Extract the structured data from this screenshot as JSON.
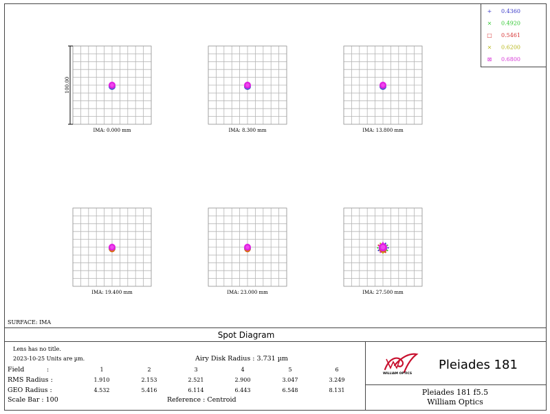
{
  "title": "Spot Diagram",
  "surface": "SURFACE: IMA",
  "legend": [
    {
      "label": "0.4360",
      "color": "#3a3ac8",
      "marker": "+"
    },
    {
      "label": "0.4920",
      "color": "#33c933",
      "marker": "×"
    },
    {
      "label": "0.5461",
      "color": "#d63232",
      "marker": "□"
    },
    {
      "label": "0.6200",
      "color": "#b8b81c",
      "marker": "×"
    },
    {
      "label": "0.6800",
      "color": "#d638d6",
      "marker": "⊠"
    }
  ],
  "scale_label": "100.00",
  "fields": [
    {
      "label": "IMA:  0.000 mm"
    },
    {
      "label": "IMA:  8.300 mm"
    },
    {
      "label": "IMA:  13.800 mm"
    },
    {
      "label": "IMA:  19.400 mm"
    },
    {
      "label": "IMA:  23.000 mm"
    },
    {
      "label": "IMA:  27.500 mm"
    }
  ],
  "info": {
    "lens_title": "Lens has no title.",
    "date_units": "2023-10-25  Units are µm.",
    "airy": "Airy Disk Radius  :  3.731 µm",
    "field_label": "Field",
    "colon": ":",
    "field_values": [
      "1",
      "2",
      "3",
      "4",
      "5",
      "6"
    ],
    "rms_label": "RMS Radius  :",
    "rms_values": [
      "1.910",
      "2.153",
      "2.521",
      "2.900",
      "3.047",
      "3.249"
    ],
    "geo_label": "GEO Radius  :",
    "geo_values": [
      "4.532",
      "5.416",
      "6.114",
      "6.443",
      "6.548",
      "8.131"
    ],
    "scale_bar": "Scale Bar    :  100",
    "reference": "Reference   :   Centroid"
  },
  "brand": {
    "name": "Pleiades 181",
    "logo_text": "WILLIAM OPTICS",
    "line1": "Pleiades 181 f5.5",
    "line2": "William Optics"
  },
  "colors": {
    "magenta": "#e01ee0",
    "orange": "#d86a1a",
    "blue": "#3a3ac8",
    "logo_red": "#c8102e"
  }
}
